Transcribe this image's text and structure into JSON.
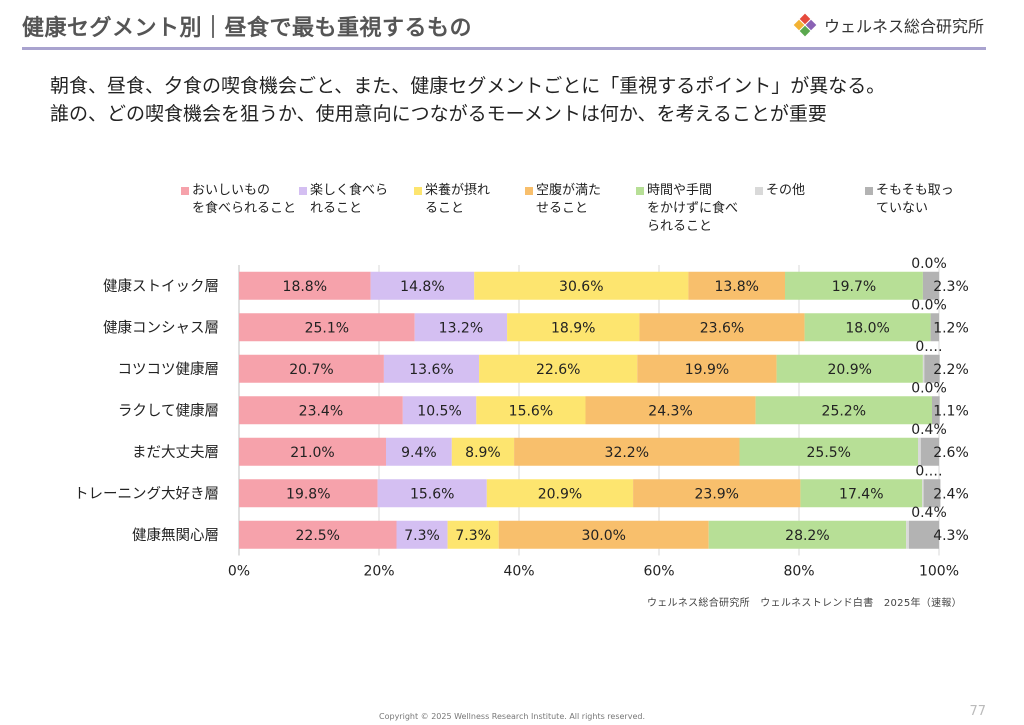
{
  "header": {
    "title": "健康セグメント別｜昼食で最も重視するもの",
    "logo_name": "ウェルネス総合研究所"
  },
  "lead": {
    "line1": "朝食、昼食、夕食の喫食機会ごと、また、健康セグメントごとに「重視するポイント」が異なる。",
    "line2": "誰の、どの喫食機会を狙うか、使用意向につながるモーメントは何か、を考えることが重要"
  },
  "chart_data": {
    "type": "bar",
    "orientation": "horizontal",
    "stacked": true,
    "percent": true,
    "categories": [
      "健康ストイック層",
      "健康コンシャス層",
      "コツコツ健康層",
      "ラクして健康層",
      "まだ大丈夫層",
      "トレーニング大好き層",
      "健康無関心層"
    ],
    "series": [
      {
        "name": "おいしいもの\nを食べられること",
        "color": "#f6a2ab",
        "values": [
          18.8,
          25.1,
          20.7,
          23.4,
          21.0,
          19.8,
          22.5
        ],
        "labels": [
          "18.8%",
          "25.1%",
          "20.7%",
          "23.4%",
          "21.0%",
          "19.8%",
          "22.5%"
        ]
      },
      {
        "name": "楽しく食べら\nれること",
        "color": "#d4bff2",
        "values": [
          14.8,
          13.2,
          13.6,
          10.5,
          9.4,
          15.6,
          7.3
        ],
        "labels": [
          "14.8%",
          "13.2%",
          "13.6%",
          "10.5%",
          "9.4%",
          "15.6%",
          "7.3%"
        ]
      },
      {
        "name": "栄養が摂れ\nること",
        "color": "#fde56f",
        "values": [
          30.6,
          18.9,
          22.6,
          15.6,
          8.9,
          20.9,
          7.3
        ],
        "labels": [
          "30.6%",
          "18.9%",
          "22.6%",
          "15.6%",
          "8.9%",
          "20.9%",
          "7.3%"
        ]
      },
      {
        "name": "空腹が満た\nせること",
        "color": "#f8bf6c",
        "values": [
          13.8,
          23.6,
          19.9,
          24.3,
          32.2,
          23.9,
          30.0
        ],
        "labels": [
          "13.8%",
          "23.6%",
          "19.9%",
          "24.3%",
          "32.2%",
          "23.9%",
          "30.0%"
        ]
      },
      {
        "name": "時間や手間\nをかけずに食べ\nられること",
        "color": "#b7df96",
        "values": [
          19.7,
          18.0,
          20.9,
          25.2,
          25.5,
          17.4,
          28.2
        ],
        "labels": [
          "19.7%",
          "18.0%",
          "20.9%",
          "25.2%",
          "25.5%",
          "17.4%",
          "28.2%"
        ]
      },
      {
        "name": "その他",
        "color": "#d9d9d9",
        "values": [
          0.0,
          0.0,
          0.2,
          0.0,
          0.4,
          0.2,
          0.4
        ],
        "labels": [
          "0.0%",
          "0.0%",
          "0.…",
          "0.0%",
          "0.4%",
          "0.…",
          "0.4%"
        ]
      },
      {
        "name": "そもそも取っ\nていない",
        "color": "#b3b3b3",
        "values": [
          2.3,
          1.2,
          2.2,
          1.1,
          2.6,
          2.4,
          4.3
        ],
        "labels": [
          "2.3%",
          "1.2%",
          "2.2%",
          "1.1%",
          "2.6%",
          "2.4%",
          "4.3%"
        ]
      }
    ],
    "xlim": [
      0,
      100
    ],
    "x_ticks": [
      "0%",
      "20%",
      "40%",
      "60%",
      "80%",
      "100%"
    ],
    "grid": true,
    "legend_position": "top"
  },
  "footer": {
    "source": "ウェルネス総合研究所　ウェルネストレンド白書　2025年（速報）",
    "copyright": "Copyright © 2025 Wellness Research Institute. All rights reserved.",
    "page_number": "77"
  }
}
